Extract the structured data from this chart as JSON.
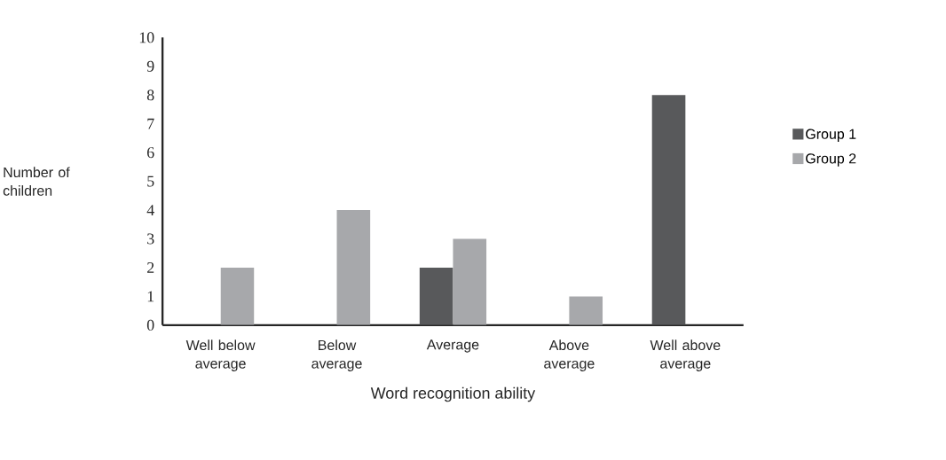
{
  "chart_data": {
    "type": "bar",
    "xlabel": "Word recognition ability",
    "ylabel": "Number of children",
    "categories": [
      "Well below average",
      "Below average",
      "Average",
      "Above average",
      "Well above average"
    ],
    "series": [
      {
        "name": "Group 1",
        "color": "#58595b",
        "values": [
          0,
          0,
          2,
          0,
          8
        ]
      },
      {
        "name": "Group 2",
        "color": "#a7a8ab",
        "values": [
          2,
          4,
          3,
          1,
          0
        ]
      }
    ],
    "ylim": [
      0,
      10
    ],
    "yticks": [
      0,
      1,
      2,
      3,
      4,
      5,
      6,
      7,
      8,
      9,
      10
    ],
    "legend": "right"
  }
}
